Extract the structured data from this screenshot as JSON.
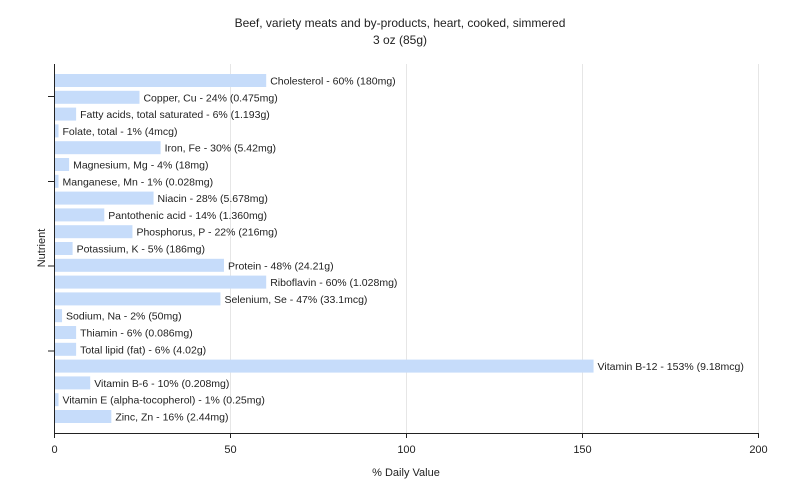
{
  "chart_data": {
    "type": "bar",
    "orientation": "horizontal",
    "title": "Beef, variety meats and by-products, heart, cooked, simmered",
    "subtitle": "3 oz (85g)",
    "xlabel": "% Daily Value",
    "ylabel": "Nutrient",
    "xlim": [
      0,
      200
    ],
    "xticks": [
      0,
      50,
      100,
      150,
      200
    ],
    "grid": true,
    "bar_color": "#c6dcfa",
    "categories": [
      "Cholesterol",
      "Copper, Cu",
      "Fatty acids, total saturated",
      "Folate, total",
      "Iron, Fe",
      "Magnesium, Mg",
      "Manganese, Mn",
      "Niacin",
      "Pantothenic acid",
      "Phosphorus, P",
      "Potassium, K",
      "Protein",
      "Riboflavin",
      "Selenium, Se",
      "Sodium, Na",
      "Thiamin",
      "Total lipid (fat)",
      "Vitamin B-12",
      "Vitamin B-6",
      "Vitamin E (alpha-tocopherol)",
      "Zinc, Zn"
    ],
    "values": [
      60,
      24,
      6,
      1,
      30,
      4,
      1,
      28,
      14,
      22,
      5,
      48,
      60,
      47,
      2,
      6,
      6,
      153,
      10,
      1,
      16
    ],
    "labels": [
      "Cholesterol - 60% (180mg)",
      "Copper, Cu - 24% (0.475mg)",
      "Fatty acids, total saturated - 6% (1.193g)",
      "Folate, total - 1% (4mcg)",
      "Iron, Fe - 30% (5.42mg)",
      "Magnesium, Mg - 4% (18mg)",
      "Manganese, Mn - 1% (0.028mg)",
      "Niacin - 28% (5.678mg)",
      "Pantothenic acid - 14% (1.360mg)",
      "Phosphorus, P - 22% (216mg)",
      "Potassium, K - 5% (186mg)",
      "Protein - 48% (24.21g)",
      "Riboflavin - 60% (1.028mg)",
      "Selenium, Se - 47% (33.1mcg)",
      "Sodium, Na - 2% (50mg)",
      "Thiamin - 6% (0.086mg)",
      "Total lipid (fat) - 6% (4.02g)",
      "Vitamin B-12 - 153% (9.18mcg)",
      "Vitamin B-6 - 10% (0.208mg)",
      "Vitamin E (alpha-tocopherol) - 1% (0.25mg)",
      "Zinc, Zn - 16% (2.44mg)"
    ]
  }
}
